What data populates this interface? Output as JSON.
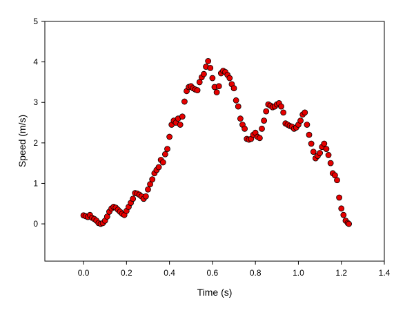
{
  "chart_data": {
    "type": "scatter",
    "x_label": "Time (s)",
    "y_label": "Speed (m/s)",
    "color": "#e60000",
    "edge_color": "#000000",
    "x": [
      0.0,
      0.01,
      0.02,
      0.03,
      0.04,
      0.05,
      0.06,
      0.07,
      0.08,
      0.09,
      0.1,
      0.11,
      0.12,
      0.13,
      0.14,
      0.15,
      0.16,
      0.17,
      0.18,
      0.19,
      0.2,
      0.21,
      0.22,
      0.23,
      0.24,
      0.25,
      0.26,
      0.27,
      0.28,
      0.29,
      0.3,
      0.31,
      0.32,
      0.33,
      0.34,
      0.35,
      0.36,
      0.37,
      0.38,
      0.39,
      0.4,
      0.41,
      0.42,
      0.43,
      0.44,
      0.45,
      0.46,
      0.47,
      0.48,
      0.49,
      0.5,
      0.51,
      0.52,
      0.53,
      0.54,
      0.55,
      0.56,
      0.57,
      0.58,
      0.59,
      0.6,
      0.61,
      0.62,
      0.63,
      0.64,
      0.65,
      0.66,
      0.67,
      0.68,
      0.69,
      0.7,
      0.71,
      0.72,
      0.73,
      0.74,
      0.75,
      0.76,
      0.77,
      0.78,
      0.79,
      0.8,
      0.81,
      0.82,
      0.83,
      0.84,
      0.85,
      0.86,
      0.87,
      0.88,
      0.89,
      0.9,
      0.91,
      0.92,
      0.93,
      0.94,
      0.95,
      0.96,
      0.97,
      0.98,
      0.99,
      1.0,
      1.01,
      1.02,
      1.03,
      1.04,
      1.05,
      1.06,
      1.07,
      1.08,
      1.09,
      1.1,
      1.11,
      1.12,
      1.13,
      1.14,
      1.15,
      1.16,
      1.17,
      1.18,
      1.19,
      1.2,
      1.21,
      1.22,
      1.23,
      1.235
    ],
    "values": [
      0.21,
      0.19,
      0.17,
      0.22,
      0.15,
      0.12,
      0.08,
      0.02,
      0.0,
      0.02,
      0.08,
      0.18,
      0.3,
      0.38,
      0.42,
      0.4,
      0.35,
      0.3,
      0.25,
      0.22,
      0.32,
      0.42,
      0.52,
      0.62,
      0.76,
      0.75,
      0.72,
      0.68,
      0.62,
      0.68,
      0.85,
      0.98,
      1.1,
      1.25,
      1.33,
      1.4,
      1.58,
      1.52,
      1.72,
      1.85,
      2.15,
      2.45,
      2.55,
      2.5,
      2.6,
      2.45,
      2.65,
      3.02,
      3.28,
      3.38,
      3.4,
      3.35,
      3.32,
      3.3,
      3.5,
      3.62,
      3.7,
      3.88,
      4.02,
      3.85,
      3.6,
      3.38,
      3.25,
      3.4,
      3.72,
      3.78,
      3.75,
      3.68,
      3.6,
      3.45,
      3.35,
      3.05,
      2.9,
      2.6,
      2.45,
      2.35,
      2.1,
      2.08,
      2.1,
      2.2,
      2.25,
      2.15,
      2.12,
      2.35,
      2.55,
      2.78,
      2.95,
      2.92,
      2.88,
      2.9,
      2.95,
      2.98,
      2.9,
      2.75,
      2.48,
      2.45,
      2.42,
      2.4,
      2.35,
      2.38,
      2.45,
      2.55,
      2.7,
      2.75,
      2.45,
      2.2,
      1.98,
      1.78,
      1.62,
      1.68,
      1.75,
      1.9,
      1.98,
      1.85,
      1.7,
      1.5,
      1.25,
      1.2,
      1.08,
      0.65,
      0.38,
      0.22,
      0.08,
      0.02,
      0.0
    ],
    "xlim": [
      -0.18,
      1.4
    ],
    "xticks": [
      {
        "value": 0,
        "label": "0.0"
      },
      0.2,
      0.4,
      0.6,
      0.8,
      {
        "value": 1,
        "label": "1.0"
      },
      1.2,
      1.4
    ],
    "ylim": [
      -0.92,
      5
    ],
    "yticks": [
      0,
      1,
      2,
      3,
      4,
      5
    ]
  }
}
